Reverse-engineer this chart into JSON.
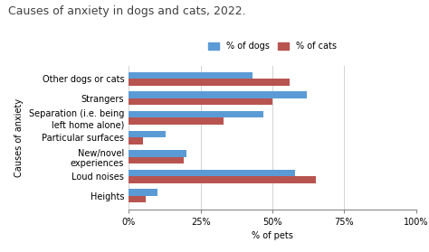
{
  "title": "Causes of anxiety in dogs and cats, 2022.",
  "categories": [
    "Heights",
    "Loud noises",
    "New/novel\nexperiences",
    "Particular surfaces",
    "Separation (i.e. being\nleft home alone)",
    "Strangers",
    "Other dogs or cats"
  ],
  "dogs": [
    10,
    58,
    20,
    13,
    47,
    62,
    43
  ],
  "cats": [
    6,
    65,
    19,
    5,
    33,
    50,
    56
  ],
  "dog_color": "#5B9BD5",
  "cat_color": "#B85450",
  "xlabel": "% of pets",
  "ylabel": "Causes of anxiety",
  "xticks": [
    0,
    25,
    50,
    75,
    100
  ],
  "xtick_labels": [
    "0%",
    "25%",
    "50%",
    "75%",
    "100%"
  ],
  "legend_dogs": "% of dogs",
  "legend_cats": "% of cats",
  "bar_height": 0.35,
  "background_color": "#FFFFFF",
  "plot_bg_color": "#FFFFFF",
  "title_fontsize": 9,
  "axis_fontsize": 7,
  "tick_fontsize": 7,
  "legend_fontsize": 7,
  "ylabel_fontsize": 7
}
